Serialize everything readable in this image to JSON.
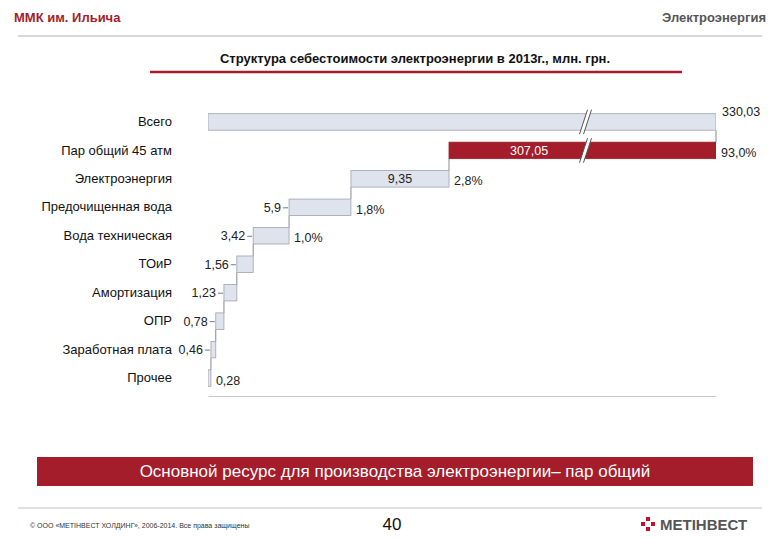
{
  "header": {
    "left": "ММК им. Ильича",
    "right": "Электроэнергия"
  },
  "chart_data": {
    "type": "waterfall",
    "orientation": "horizontal",
    "title": "Структура себестоимости электроэнергии в 2013г., млн. грн.",
    "categories": [
      "Всего",
      "Пар общий 45 атм",
      "Электроэнергия",
      "Предочищенная вода",
      "Вода техническая",
      "ТОиР",
      "Амортизация",
      "ОПР",
      "Заработная плата",
      "Прочее"
    ],
    "values": [
      330.03,
      307.05,
      9.35,
      5.9,
      3.42,
      1.56,
      1.23,
      0.78,
      0.46,
      0.28
    ],
    "value_labels": [
      "330,03",
      "307,05",
      "9,35",
      "5,9",
      "3,42",
      "1,56",
      "1,23",
      "0,78",
      "0,46",
      "0,28"
    ],
    "shares": [
      null,
      93.0,
      2.8,
      1.8,
      1.0,
      null,
      null,
      null,
      null,
      null
    ],
    "share_labels": [
      null,
      "93,0%",
      "2,8%",
      "1,8%",
      "1,0%",
      null,
      null,
      null,
      null,
      null
    ],
    "colors": [
      "#dfe3ee",
      "#a31d2b",
      "#dfe3ee",
      "#dfe3ee",
      "#dfe3ee",
      "#dfe3ee",
      "#dfe3ee",
      "#dfe3ee",
      "#dfe3ee",
      "#dfe3ee"
    ],
    "xlim": [
      0,
      330.03
    ],
    "tick_labels": "y",
    "data_labels": true
  },
  "banner": "Основной ресурс для производства электроэнергии– пар общий",
  "footer": {
    "copyright": "© ООО «МЕТІНВЕСТ ХОЛДИНГ», 2006-2014. Все права защищены",
    "page": 40,
    "logo": "МЕТІНВЕСТ"
  }
}
